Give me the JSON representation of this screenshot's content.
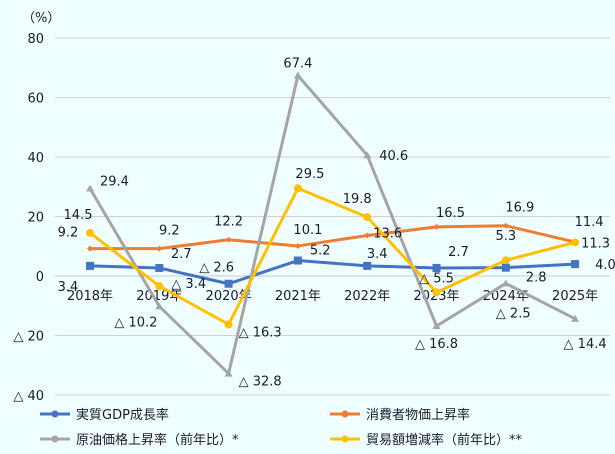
{
  "chart_data": {
    "type": "line",
    "unit_label": "（%）",
    "categories": [
      "2018年",
      "2019年",
      "2020年",
      "2021年",
      "2022年",
      "2023年",
      "2024年",
      "2025年"
    ],
    "ylim": [
      -40,
      80
    ],
    "yticks": [
      80,
      60,
      40,
      20,
      0,
      -20,
      -40
    ],
    "ytick_labels": [
      "80",
      "60",
      "40",
      "20",
      "0",
      "△ 20",
      "△ 40"
    ],
    "grid": true,
    "legend_position": "bottom",
    "negative_prefix": "△ ",
    "series": [
      {
        "name": "実質GDP成長率",
        "color": "#4472c4",
        "marker": "square",
        "values": [
          3.4,
          2.7,
          -2.6,
          5.2,
          3.4,
          2.7,
          2.8,
          4.0
        ]
      },
      {
        "name": "消費者物価上昇率",
        "color": "#ed7d31",
        "marker": "diamond",
        "values": [
          9.2,
          9.2,
          12.2,
          10.1,
          13.6,
          16.5,
          16.9,
          11.4
        ]
      },
      {
        "name": "原油価格上昇率（前年比）*",
        "color": "#a5a5a5",
        "marker": "triangle",
        "values": [
          29.4,
          -10.2,
          -32.8,
          67.4,
          40.6,
          -16.8,
          -2.5,
          -14.4
        ]
      },
      {
        "name": "貿易額増減率（前年比）**",
        "color": "#ffc000",
        "marker": "circle",
        "values": [
          14.5,
          -3.4,
          -16.3,
          29.5,
          19.8,
          -5.5,
          5.3,
          11.3
        ]
      }
    ]
  }
}
